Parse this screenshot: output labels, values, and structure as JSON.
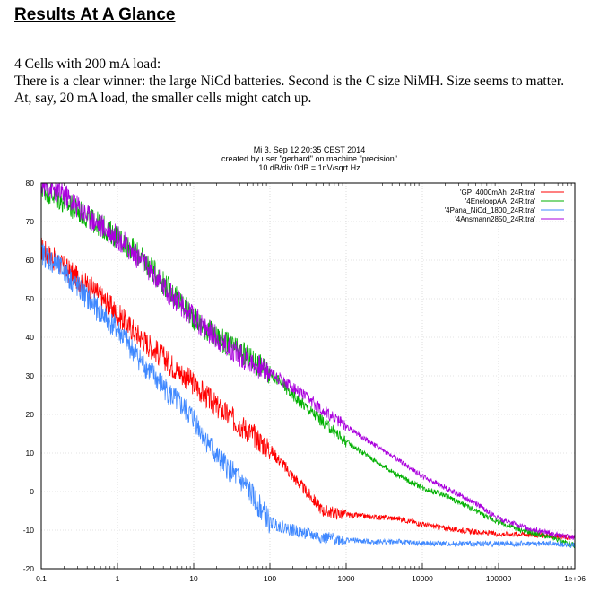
{
  "heading": "Results At A Glance",
  "paragraph": {
    "line1": "4 Cells with 200 mA load:",
    "line2": "There is a clear winner: the large NiCd batteries. Second is the C size NiMH. Size seems to matter.",
    "line3": "At, say,  20 mA load, the smaller cells might catch up."
  },
  "chart_data": {
    "type": "line",
    "title": "Mi 3. Sep 12:20:35 CEST 2014",
    "subtitle": "created by user \"gerhard\" on machine \"precision\"",
    "scale_note": "10 dB/div   0dB = 1nV/sqrt Hz",
    "xlabel": "",
    "ylabel": "",
    "x_scale": "log",
    "xlim": [
      0.1,
      1000000
    ],
    "ylim": [
      -20,
      80
    ],
    "x_tick_labels": [
      "0.1",
      "1",
      "10",
      "100",
      "1000",
      "10000",
      "100000",
      "1e+06"
    ],
    "y_tick_labels": [
      "-20",
      "-10",
      "0",
      "10",
      "20",
      "30",
      "40",
      "50",
      "60",
      "70",
      "80"
    ],
    "grid": true,
    "legend_position": "top-right",
    "series": [
      {
        "name": "'GP_4000mAh_24R.tra'",
        "color": "#ff0000",
        "x": [
          0.1,
          0.2,
          0.5,
          1,
          2,
          5,
          10,
          20,
          50,
          100,
          200,
          500,
          1000,
          2000,
          5000,
          10000,
          20000,
          50000,
          100000,
          200000,
          500000,
          1000000
        ],
        "y": [
          63,
          58,
          52,
          46,
          40,
          33,
          28,
          22,
          16,
          11,
          4,
          -5,
          -6,
          -6.5,
          -7,
          -8.5,
          -9.5,
          -10.5,
          -11,
          -11,
          -11.5,
          -12
        ]
      },
      {
        "name": "'4EneloopAA_24R.tra'",
        "color": "#00b000",
        "x": [
          0.1,
          0.2,
          0.5,
          1,
          2,
          5,
          10,
          20,
          50,
          100,
          200,
          500,
          1000,
          2000,
          5000,
          10000,
          20000,
          50000,
          100000,
          200000,
          500000,
          1000000
        ],
        "y": [
          79,
          75,
          70,
          66,
          61,
          52,
          45,
          40,
          35,
          31,
          25,
          18,
          13,
          9,
          4,
          1,
          -1,
          -5,
          -8,
          -10,
          -12,
          -14
        ]
      },
      {
        "name": "'4Pana_NiCd_1800_24R.tra'",
        "color": "#3f88ff",
        "x": [
          0.1,
          0.2,
          0.5,
          1,
          2,
          5,
          10,
          20,
          50,
          100,
          200,
          500,
          1000,
          2000,
          5000,
          10000,
          20000,
          50000,
          100000,
          200000,
          500000,
          1000000
        ],
        "y": [
          62,
          57,
          48,
          42,
          34,
          25,
          19,
          9,
          1,
          -8,
          -10,
          -12,
          -12.5,
          -13,
          -13,
          -13.5,
          -13.5,
          -13.5,
          -13.5,
          -13.5,
          -13.5,
          -14
        ]
      },
      {
        "name": "'4Ansmann2850_24R.tra'",
        "color": "#aa00dd",
        "x": [
          0.1,
          0.2,
          0.5,
          1,
          2,
          5,
          10,
          20,
          50,
          100,
          200,
          500,
          1000,
          2000,
          5000,
          10000,
          20000,
          50000,
          100000,
          200000,
          500000,
          1000000
        ],
        "y": [
          80,
          77,
          70,
          66,
          60,
          51,
          45,
          40,
          34,
          31,
          27,
          21,
          17,
          13,
          8,
          4,
          1,
          -3,
          -7,
          -9,
          -11,
          -12
        ]
      }
    ]
  }
}
